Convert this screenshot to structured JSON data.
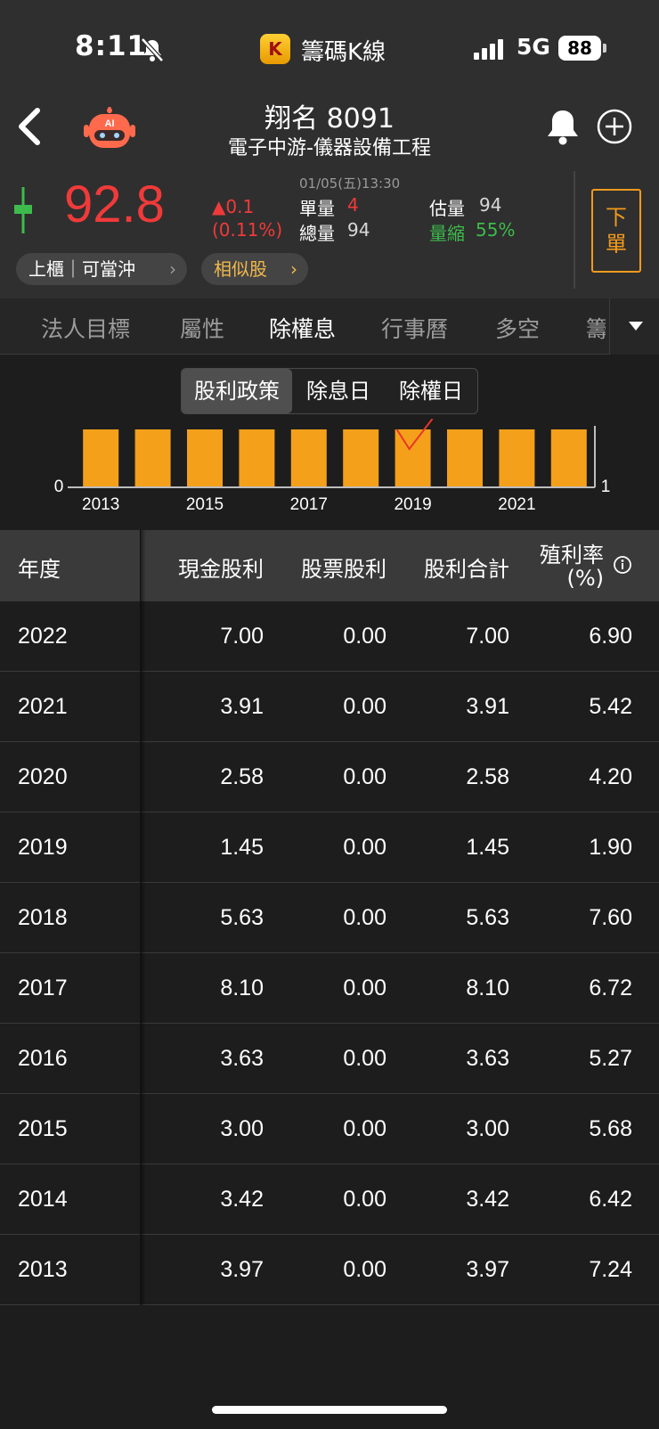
{
  "status_bar": {
    "time": "8:11",
    "app_name": "籌碼K線",
    "app_badge": "K",
    "network": "5G",
    "battery": "88"
  },
  "header": {
    "title": "翔名 8091",
    "subtitle": "電子中游-儀器設備工程",
    "ai_badge": "AI"
  },
  "quote": {
    "price": "92.8",
    "change": "▲0.1",
    "change_pct": "(0.11%)",
    "timestamp": "01/05(五)13:30",
    "single_label": "單量",
    "single_value": "4",
    "total_label": "總量",
    "total_value": "94",
    "est_label": "估量",
    "est_value": "94",
    "shrink_label": "量縮",
    "shrink_value": "55%",
    "order_button": "下單",
    "order_line1": "下",
    "order_line2": "單",
    "market_pill": "上櫃｜可當沖",
    "similar_pill": "相似股"
  },
  "tabs": [
    "法人目標",
    "屬性",
    "除權息",
    "行事曆",
    "多空",
    "籌"
  ],
  "active_tab": "除權息",
  "segments": [
    "股利政策",
    "除息日",
    "除權日"
  ],
  "active_segment": "股利政策",
  "chart_data": {
    "type": "bar",
    "x": [
      2013,
      2014,
      2015,
      2016,
      2017,
      2018,
      2019,
      2020,
      2021,
      2022
    ],
    "values": [
      1,
      1,
      1,
      1,
      1,
      1,
      1,
      1,
      1,
      1
    ],
    "x_tick_labels": [
      "2013",
      "2015",
      "2017",
      "2019",
      "2021"
    ],
    "y_left_label": "0",
    "y_right_label": "1",
    "bar_color": "#f5a01a",
    "annotation": "red checkmark over 2019 bar"
  },
  "table": {
    "headers": [
      "年度",
      "現金股利",
      "股票股利",
      "股利合計",
      "殖利率",
      "(%)"
    ],
    "rows": [
      [
        "2022",
        "7.00",
        "0.00",
        "7.00",
        "6.90"
      ],
      [
        "2021",
        "3.91",
        "0.00",
        "3.91",
        "5.42"
      ],
      [
        "2020",
        "2.58",
        "0.00",
        "2.58",
        "4.20"
      ],
      [
        "2019",
        "1.45",
        "0.00",
        "1.45",
        "1.90"
      ],
      [
        "2018",
        "5.63",
        "0.00",
        "5.63",
        "7.60"
      ],
      [
        "2017",
        "8.10",
        "0.00",
        "8.10",
        "6.72"
      ],
      [
        "2016",
        "3.63",
        "0.00",
        "3.63",
        "5.27"
      ],
      [
        "2015",
        "3.00",
        "0.00",
        "3.00",
        "5.68"
      ],
      [
        "2014",
        "3.42",
        "0.00",
        "3.42",
        "6.42"
      ],
      [
        "2013",
        "3.97",
        "0.00",
        "3.97",
        "7.24"
      ]
    ]
  },
  "colors": {
    "up": "#f03a3a",
    "down": "#3dbb4c",
    "accent": "#f39a1e",
    "bar": "#f5a01a"
  }
}
